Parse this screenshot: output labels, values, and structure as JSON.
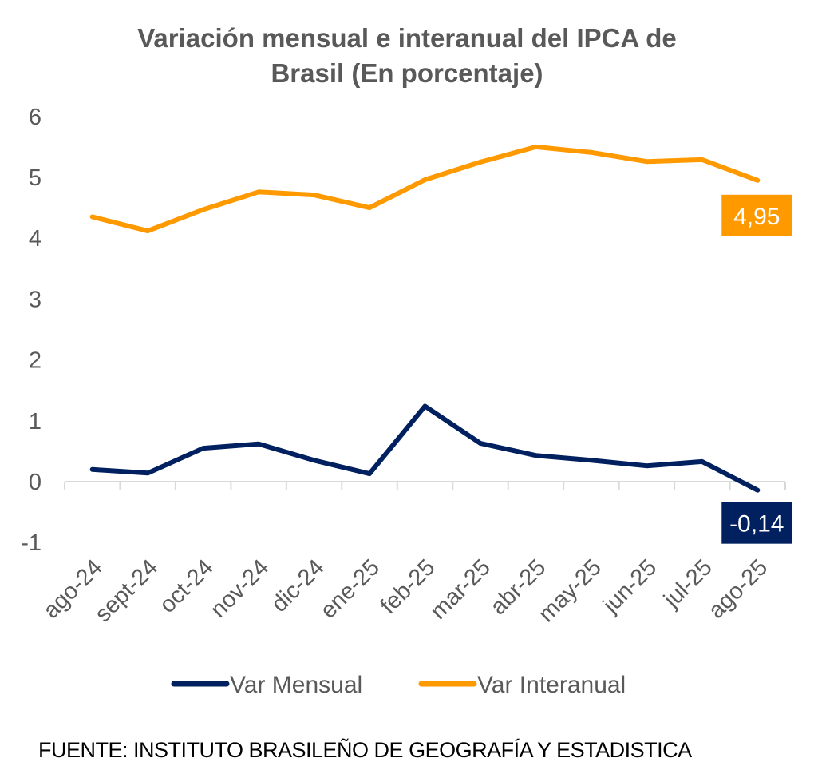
{
  "chart_data": {
    "type": "line",
    "title": [
      "Variación mensual e interanual del IPCA de",
      "Brasil (En porcentaje)"
    ],
    "xlabel": "",
    "ylabel": "",
    "ylim": [
      -1,
      6
    ],
    "yticks": [
      "-1",
      "0",
      "1",
      "2",
      "3",
      "4",
      "5",
      "6"
    ],
    "grid": false,
    "legend_position": "bottom",
    "categories": [
      "ago-24",
      "sept-24",
      "oct-24",
      "nov-24",
      "dic-24",
      "ene-25",
      "feb-25",
      "mar-25",
      "abr-25",
      "may-25",
      "jun-25",
      "jul-25",
      "ago-25"
    ],
    "series": [
      {
        "name": "Var Mensual",
        "color": "#002060",
        "values": [
          0.2,
          0.14,
          0.55,
          0.62,
          0.35,
          0.13,
          1.24,
          0.63,
          0.43,
          0.35,
          0.26,
          0.33,
          -0.14
        ],
        "end_label": "-0,14"
      },
      {
        "name": "Var Interanual",
        "color": "#FF9900",
        "values": [
          4.35,
          4.12,
          4.47,
          4.76,
          4.71,
          4.5,
          4.96,
          5.25,
          5.5,
          5.41,
          5.26,
          5.29,
          4.95
        ],
        "end_label": "4,95"
      }
    ]
  },
  "source": "FUENTE: INSTITUTO BRASILEÑO DE GEOGRAFÍA Y ESTADISTICA"
}
